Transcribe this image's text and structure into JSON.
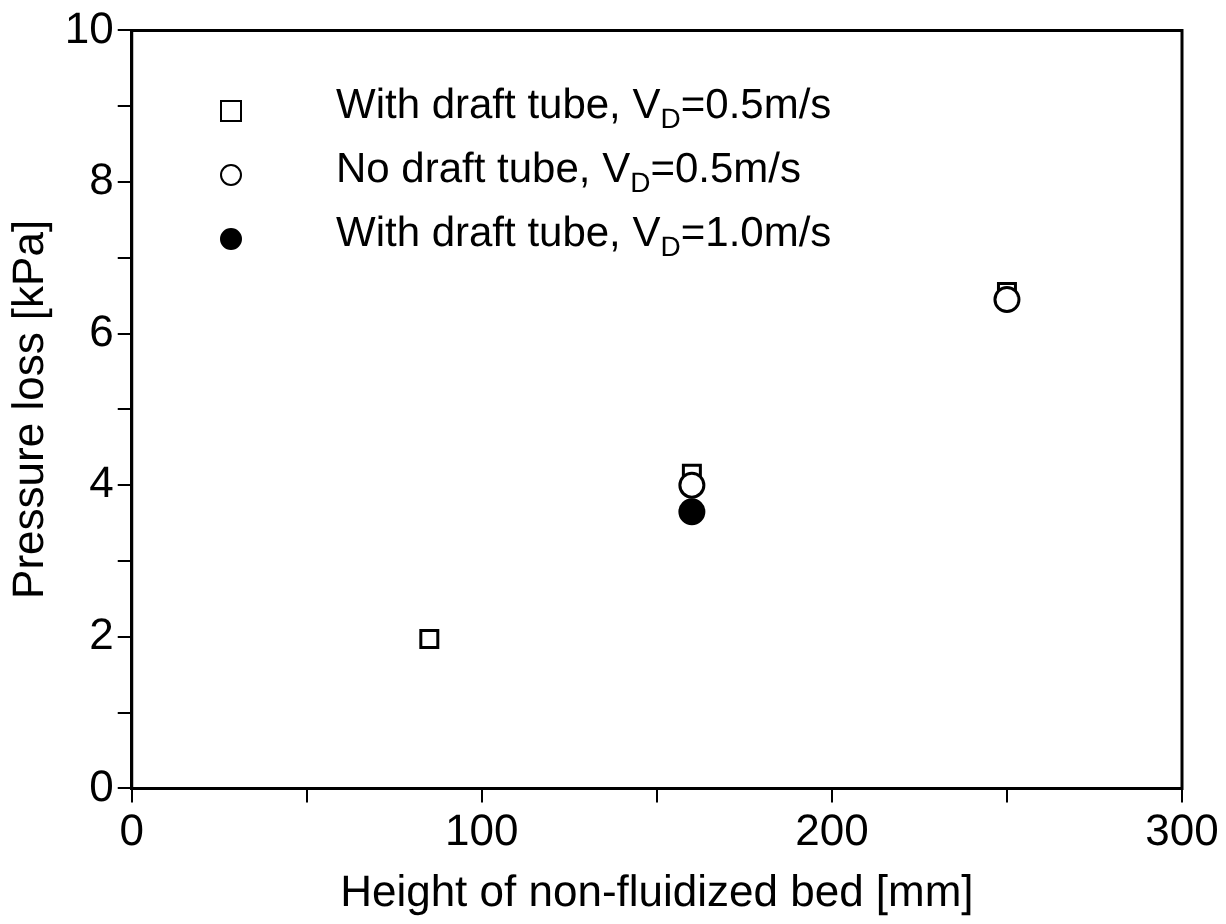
{
  "chart_data": {
    "type": "scatter",
    "xlabel": "Height of non-fluidized bed [mm]",
    "ylabel": "Pressure loss [kPa]",
    "xlim": [
      0,
      300
    ],
    "xticks": [
      0,
      {
        "value": 50,
        "label": null
      },
      100,
      {
        "value": 150,
        "label": null
      },
      200,
      {
        "value": 250,
        "label": null
      },
      300
    ],
    "ylim": [
      0,
      10
    ],
    "yticks": [
      0,
      {
        "value": 1,
        "label": null
      },
      2,
      {
        "value": 3,
        "label": null
      },
      4,
      {
        "value": 5,
        "label": null
      },
      6,
      {
        "value": 7,
        "label": null
      },
      8,
      {
        "value": 9,
        "label": null
      },
      10
    ],
    "grid": false,
    "legend": "top left",
    "series": [
      {
        "name": "With draft tube, V$_{D}$=0.5m/s",
        "color": "#000000",
        "marker": "square-open",
        "x": [
          85,
          160,
          250
        ],
        "values": [
          1.97,
          4.15,
          6.55
        ]
      },
      {
        "name": "No draft tube, V$_{D}$=0.5m/s",
        "color": "#000000",
        "marker": "circle-open",
        "x": [
          160,
          250
        ],
        "values": [
          4.0,
          6.45
        ]
      },
      {
        "name": "With draft tube, V$_{D}$=1.0m/s",
        "color": "#000000",
        "marker": "circle",
        "x": [
          160
        ],
        "values": [
          3.65
        ]
      }
    ]
  }
}
